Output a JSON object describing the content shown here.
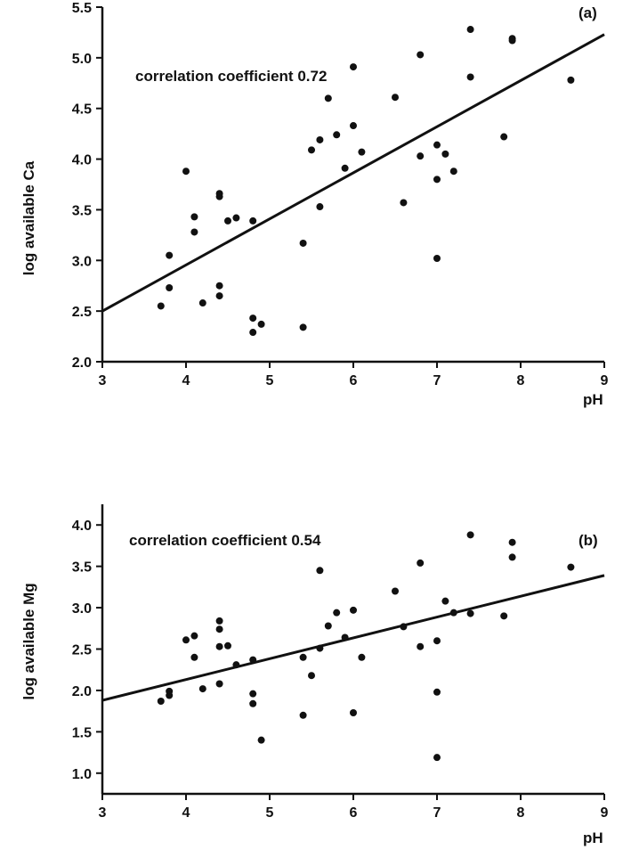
{
  "chart_data": [
    {
      "type": "scatter",
      "panel_label": "(a)",
      "annotation": "correlation coefficient 0.72",
      "xlabel": "pH",
      "ylabel": "log available Ca",
      "xlim": [
        3,
        9
      ],
      "ylim": [
        2.0,
        5.5
      ],
      "xticks": [
        "3",
        "4",
        "5",
        "6",
        "7",
        "8",
        "9"
      ],
      "yticks": [
        "2.0",
        "2.5",
        "3.0",
        "3.5",
        "4.0",
        "4.5",
        "5.0",
        "5.5"
      ],
      "grid": false,
      "points": [
        [
          3.7,
          2.55
        ],
        [
          3.8,
          3.05
        ],
        [
          3.8,
          2.73
        ],
        [
          4.0,
          3.88
        ],
        [
          4.1,
          3.43
        ],
        [
          4.1,
          3.28
        ],
        [
          4.2,
          2.58
        ],
        [
          4.4,
          3.66
        ],
        [
          4.4,
          3.63
        ],
        [
          4.4,
          2.75
        ],
        [
          4.4,
          2.65
        ],
        [
          4.5,
          3.39
        ],
        [
          4.6,
          3.42
        ],
        [
          4.8,
          3.39
        ],
        [
          4.8,
          2.43
        ],
        [
          4.8,
          2.29
        ],
        [
          4.9,
          2.37
        ],
        [
          5.4,
          3.17
        ],
        [
          5.4,
          2.34
        ],
        [
          5.5,
          4.09
        ],
        [
          5.6,
          4.19
        ],
        [
          5.6,
          3.53
        ],
        [
          5.7,
          4.6
        ],
        [
          5.8,
          4.24
        ],
        [
          5.9,
          3.91
        ],
        [
          6.0,
          4.91
        ],
        [
          6.0,
          4.33
        ],
        [
          6.1,
          4.07
        ],
        [
          6.5,
          4.61
        ],
        [
          6.6,
          3.57
        ],
        [
          6.8,
          5.03
        ],
        [
          6.8,
          4.03
        ],
        [
          7.0,
          4.14
        ],
        [
          7.0,
          3.8
        ],
        [
          7.0,
          3.02
        ],
        [
          7.1,
          4.05
        ],
        [
          7.2,
          3.88
        ],
        [
          7.4,
          5.28
        ],
        [
          7.4,
          4.81
        ],
        [
          7.8,
          4.22
        ],
        [
          7.9,
          5.19
        ],
        [
          7.9,
          5.17
        ],
        [
          8.6,
          4.78
        ]
      ],
      "fit_line": [
        [
          3,
          2.5
        ],
        [
          9,
          5.23
        ]
      ]
    },
    {
      "type": "scatter",
      "panel_label": "(b)",
      "annotation": "correlation coefficient 0.54",
      "xlabel": "pH",
      "ylabel": "log available Mg",
      "xlim": [
        3,
        9
      ],
      "ylim": [
        0.75,
        4.25
      ],
      "xticks": [
        "3",
        "4",
        "5",
        "6",
        "7",
        "8",
        "9"
      ],
      "yticks": [
        "1.0",
        "1.5",
        "2.0",
        "2.5",
        "3.0",
        "3.5",
        "4.0"
      ],
      "grid": false,
      "points": [
        [
          3.7,
          1.87
        ],
        [
          3.8,
          1.99
        ],
        [
          3.8,
          1.94
        ],
        [
          4.0,
          2.61
        ],
        [
          4.1,
          2.66
        ],
        [
          4.1,
          2.4
        ],
        [
          4.2,
          2.02
        ],
        [
          4.4,
          2.84
        ],
        [
          4.4,
          2.74
        ],
        [
          4.4,
          2.53
        ],
        [
          4.4,
          2.08
        ],
        [
          4.5,
          2.54
        ],
        [
          4.6,
          2.31
        ],
        [
          4.8,
          2.37
        ],
        [
          4.8,
          1.96
        ],
        [
          4.8,
          1.84
        ],
        [
          4.9,
          1.4
        ],
        [
          5.4,
          2.4
        ],
        [
          5.4,
          1.7
        ],
        [
          5.5,
          2.18
        ],
        [
          5.6,
          3.45
        ],
        [
          5.6,
          2.51
        ],
        [
          5.7,
          2.78
        ],
        [
          5.8,
          2.94
        ],
        [
          5.9,
          2.64
        ],
        [
          6.0,
          2.97
        ],
        [
          6.0,
          1.73
        ],
        [
          6.1,
          2.4
        ],
        [
          6.5,
          3.2
        ],
        [
          6.6,
          2.77
        ],
        [
          6.8,
          3.54
        ],
        [
          6.8,
          2.53
        ],
        [
          7.0,
          2.6
        ],
        [
          7.0,
          1.98
        ],
        [
          7.0,
          1.19
        ],
        [
          7.1,
          3.08
        ],
        [
          7.2,
          2.94
        ],
        [
          7.4,
          3.88
        ],
        [
          7.4,
          2.93
        ],
        [
          7.8,
          2.9
        ],
        [
          7.9,
          3.79
        ],
        [
          7.9,
          3.61
        ],
        [
          8.6,
          3.49
        ]
      ],
      "fit_line": [
        [
          3,
          1.88
        ],
        [
          9,
          3.39
        ]
      ]
    }
  ]
}
